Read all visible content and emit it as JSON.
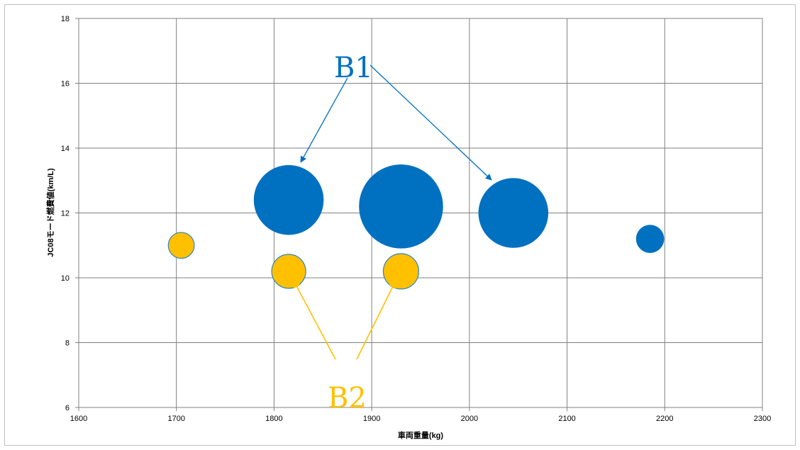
{
  "chart_data": {
    "type": "bubble",
    "xlabel": "車両重量(kg)",
    "ylabel": "JC08モード燃費値(km/L)",
    "xlim": [
      1600,
      2300
    ],
    "ylim": [
      6,
      18
    ],
    "xticks": [
      "1600",
      "1700",
      "1800",
      "1900",
      "2000",
      "2100",
      "2200",
      "2300"
    ],
    "yticks": [
      "6",
      "8",
      "10",
      "12",
      "14",
      "16",
      "18"
    ],
    "grid": true,
    "series": [
      {
        "color": "#0070c0",
        "points": [
          {
            "x": 1815,
            "y": 12.4,
            "size": 1.0
          },
          {
            "x": 1930,
            "y": 12.2,
            "size": 1.45
          },
          {
            "x": 2045,
            "y": 12.0,
            "size": 1.0
          },
          {
            "x": 2185,
            "y": 11.2,
            "size": 0.16
          }
        ]
      },
      {
        "color": "#ffc000",
        "points": [
          {
            "x": 1705,
            "y": 11.0,
            "size": 0.14
          },
          {
            "x": 1815,
            "y": 10.2,
            "size": 0.24
          },
          {
            "x": 1930,
            "y": 10.2,
            "size": 0.26
          }
        ]
      }
    ],
    "annotations": [
      {
        "text": "B1",
        "color": "#0070c0"
      },
      {
        "text": "B2",
        "color": "#ffc000"
      }
    ]
  }
}
